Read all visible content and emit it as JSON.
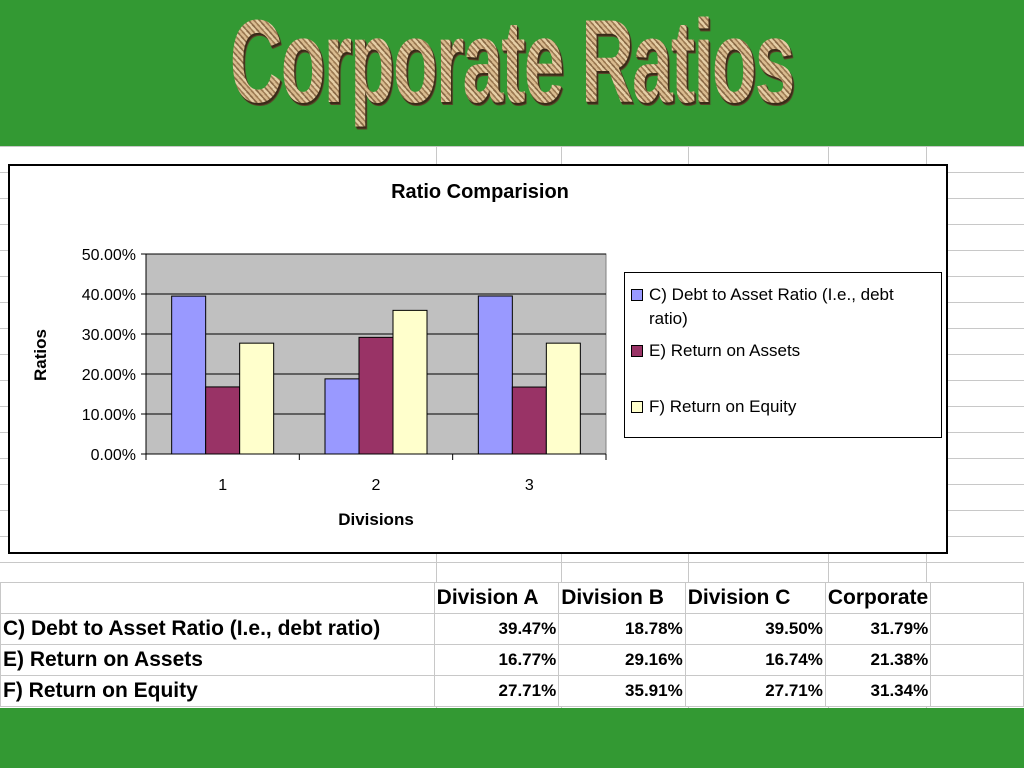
{
  "slide": {
    "title": "Corporate Ratios"
  },
  "table": {
    "headers": [
      "",
      "Division A",
      "Division B",
      "Division C",
      "Corporate",
      ""
    ],
    "rows": [
      {
        "label": "C) Debt to Asset Ratio (I.e., debt ratio)",
        "values": [
          "39.47%",
          "18.78%",
          "39.50%",
          "31.79%"
        ]
      },
      {
        "label": "E) Return on Assets",
        "values": [
          "16.77%",
          "29.16%",
          "16.74%",
          "21.38%"
        ]
      },
      {
        "label": "F) Return on Equity",
        "values": [
          "27.71%",
          "35.91%",
          "27.71%",
          "31.34%"
        ]
      }
    ]
  },
  "chart_data": {
    "type": "bar",
    "title": "Ratio Comparision",
    "xlabel": "Divisions",
    "ylabel": "Ratios",
    "categories": [
      "1",
      "2",
      "3"
    ],
    "ylim": [
      0,
      0.5
    ],
    "yticks": [
      "0.00%",
      "10.00%",
      "20.00%",
      "30.00%",
      "40.00%",
      "50.00%"
    ],
    "grid": true,
    "legend_position": "right",
    "plot_background": "#c0c0c0",
    "series": [
      {
        "name": "C) Debt to Asset Ratio (I.e., debt ratio)",
        "color": "#9999ff",
        "values": [
          0.3947,
          0.1878,
          0.395
        ]
      },
      {
        "name": "E) Return on Assets",
        "color": "#993366",
        "values": [
          0.1677,
          0.2916,
          0.1674
        ]
      },
      {
        "name": "F) Return on Equity",
        "color": "#ffffcc",
        "values": [
          0.2771,
          0.3591,
          0.2771
        ]
      }
    ]
  }
}
